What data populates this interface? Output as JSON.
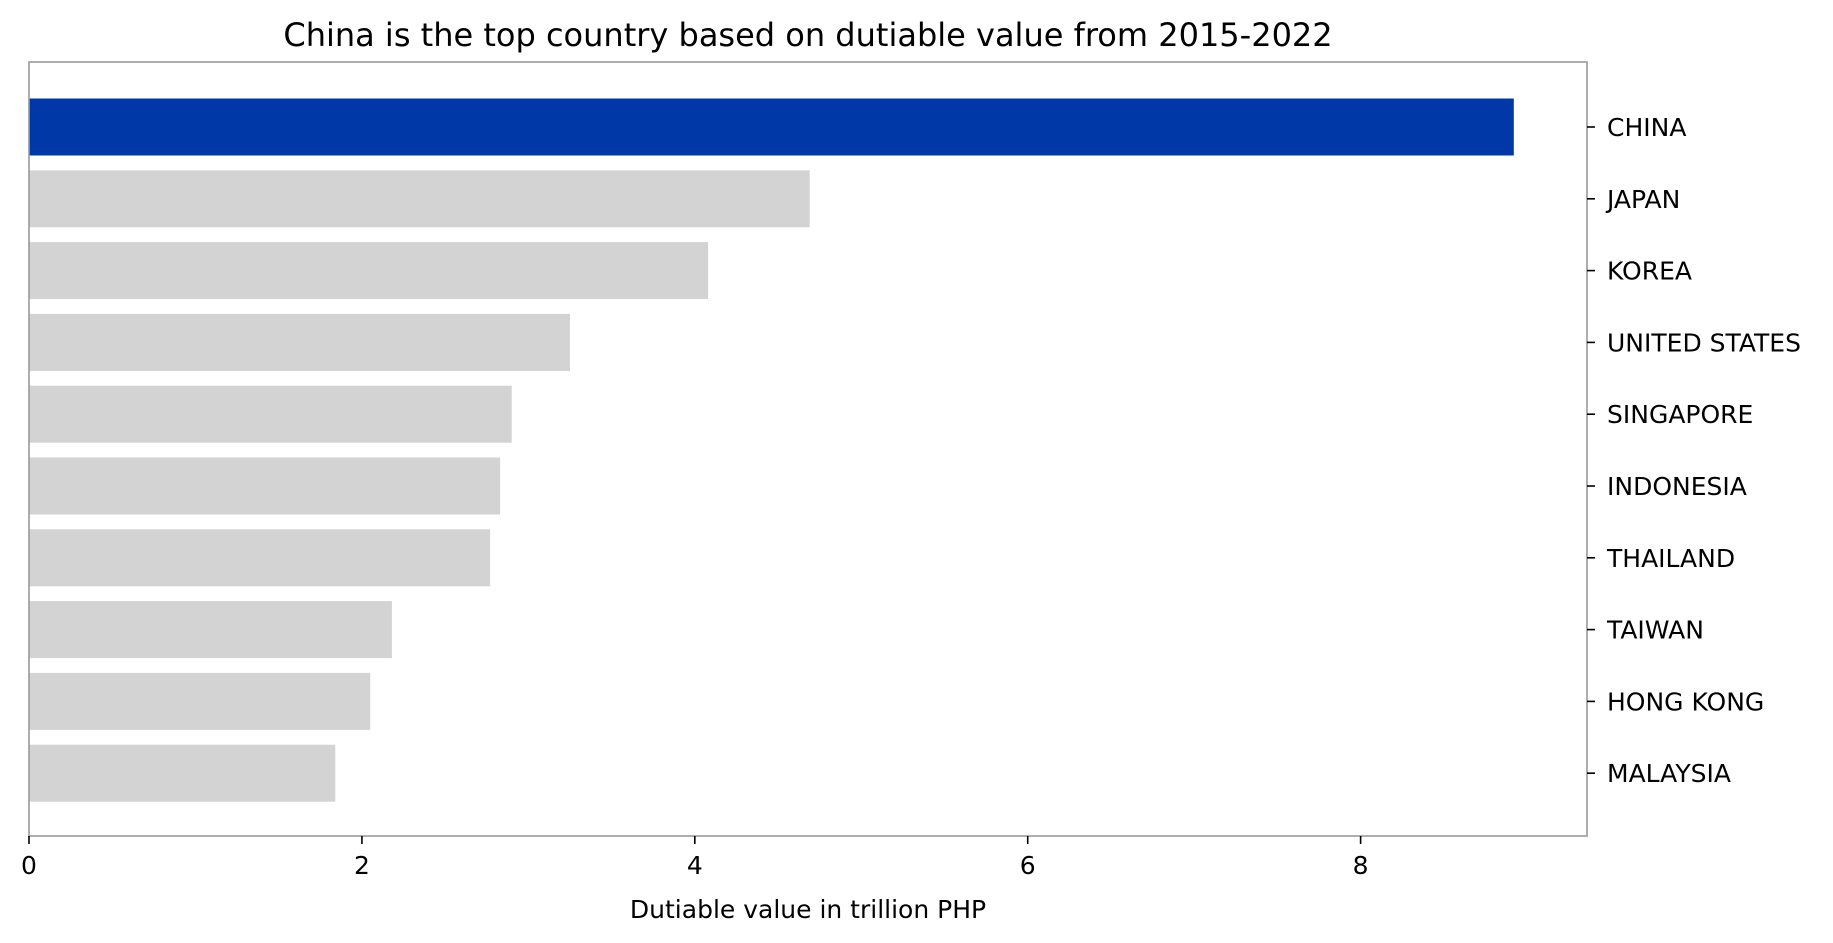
{
  "chart_data": {
    "type": "bar",
    "orientation": "horizontal",
    "title": "China is the top country based on dutiable value from 2015-2022",
    "xlabel": "Dutiable value in trillion PHP",
    "ylabel": "",
    "y_axis_side": "right",
    "xlim": [
      0,
      9.36
    ],
    "x_ticks": [
      0,
      2,
      4,
      6,
      8
    ],
    "grid": false,
    "legend": "none",
    "categories": [
      "CHINA",
      "JAPAN",
      "KOREA",
      "UNITED STATES",
      "SINGAPORE",
      "INDONESIA",
      "THAILAND",
      "TAIWAN",
      "HONG KONG",
      "MALAYSIA"
    ],
    "values": [
      8.92,
      4.69,
      4.08,
      3.25,
      2.9,
      2.83,
      2.77,
      2.18,
      2.05,
      1.84
    ],
    "highlight_index": 0,
    "colors": {
      "highlight": "#0038A8",
      "default": "#D3D3D3",
      "spine": "#999999",
      "text": "#000000"
    }
  }
}
